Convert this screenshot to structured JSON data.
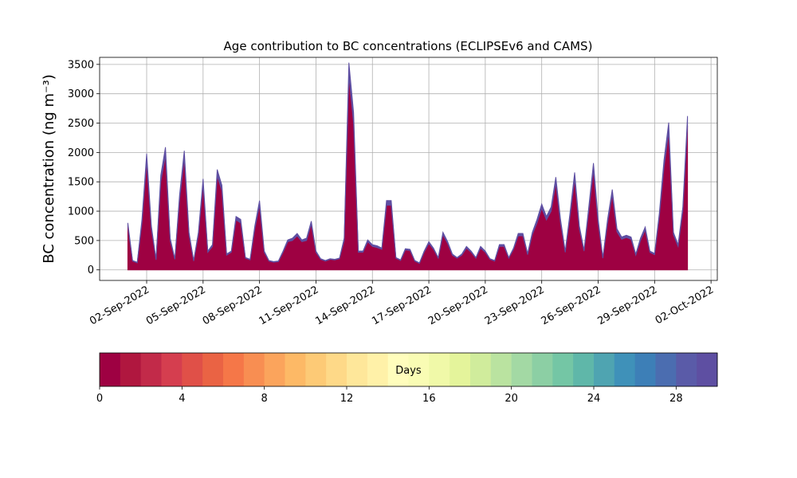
{
  "chart_data": {
    "type": "stacked_area",
    "title": "Age contribution to BC concentrations (ECLIPSEv6 and CAMS)",
    "y_label": "BC concentration (ng m⁻³)",
    "x": [
      "2022-09-01 00:00",
      "2022-09-01 06:00",
      "2022-09-01 12:00",
      "2022-09-01 18:00",
      "2022-09-02 00:00",
      "2022-09-02 06:00",
      "2022-09-02 12:00",
      "2022-09-02 18:00",
      "2022-09-03 00:00",
      "2022-09-03 06:00",
      "2022-09-03 12:00",
      "2022-09-03 18:00",
      "2022-09-04 00:00",
      "2022-09-04 06:00",
      "2022-09-04 12:00",
      "2022-09-04 18:00",
      "2022-09-05 00:00",
      "2022-09-05 06:00",
      "2022-09-05 12:00",
      "2022-09-05 18:00",
      "2022-09-06 00:00",
      "2022-09-06 06:00",
      "2022-09-06 12:00",
      "2022-09-06 18:00",
      "2022-09-07 00:00",
      "2022-09-07 06:00",
      "2022-09-07 12:00",
      "2022-09-07 18:00",
      "2022-09-08 00:00",
      "2022-09-08 06:00",
      "2022-09-08 12:00",
      "2022-09-08 18:00",
      "2022-09-09 00:00",
      "2022-09-09 06:00",
      "2022-09-09 12:00",
      "2022-09-09 18:00",
      "2022-09-10 00:00",
      "2022-09-10 06:00",
      "2022-09-10 12:00",
      "2022-09-10 18:00",
      "2022-09-11 00:00",
      "2022-09-11 06:00",
      "2022-09-11 12:00",
      "2022-09-11 18:00",
      "2022-09-12 00:00",
      "2022-09-12 06:00",
      "2022-09-12 12:00",
      "2022-09-12 18:00",
      "2022-09-13 00:00",
      "2022-09-13 06:00",
      "2022-09-13 12:00",
      "2022-09-13 18:00",
      "2022-09-14 00:00",
      "2022-09-14 06:00",
      "2022-09-14 12:00",
      "2022-09-14 18:00",
      "2022-09-15 00:00",
      "2022-09-15 06:00",
      "2022-09-15 12:00",
      "2022-09-15 18:00",
      "2022-09-16 00:00",
      "2022-09-16 06:00",
      "2022-09-16 12:00",
      "2022-09-16 18:00",
      "2022-09-17 00:00",
      "2022-09-17 06:00",
      "2022-09-17 12:00",
      "2022-09-17 18:00",
      "2022-09-18 00:00",
      "2022-09-18 06:00",
      "2022-09-18 12:00",
      "2022-09-18 18:00",
      "2022-09-19 00:00",
      "2022-09-19 06:00",
      "2022-09-19 12:00",
      "2022-09-19 18:00",
      "2022-09-20 00:00",
      "2022-09-20 06:00",
      "2022-09-20 12:00",
      "2022-09-20 18:00",
      "2022-09-21 00:00",
      "2022-09-21 06:00",
      "2022-09-21 12:00",
      "2022-09-21 18:00",
      "2022-09-22 00:00",
      "2022-09-22 06:00",
      "2022-09-22 12:00",
      "2022-09-22 18:00",
      "2022-09-23 00:00",
      "2022-09-23 06:00",
      "2022-09-23 12:00",
      "2022-09-23 18:00",
      "2022-09-24 00:00",
      "2022-09-24 06:00",
      "2022-09-24 12:00",
      "2022-09-24 18:00",
      "2022-09-25 00:00",
      "2022-09-25 06:00",
      "2022-09-25 12:00",
      "2022-09-25 18:00",
      "2022-09-26 00:00",
      "2022-09-26 06:00",
      "2022-09-26 12:00",
      "2022-09-26 18:00",
      "2022-09-27 00:00",
      "2022-09-27 06:00",
      "2022-09-27 12:00",
      "2022-09-27 18:00",
      "2022-09-28 00:00",
      "2022-09-28 06:00",
      "2022-09-28 12:00",
      "2022-09-28 18:00",
      "2022-09-29 00:00",
      "2022-09-29 06:00",
      "2022-09-29 12:00",
      "2022-09-29 18:00",
      "2022-09-30 00:00",
      "2022-09-30 06:00",
      "2022-09-30 12:00",
      "2022-09-30 18:00"
    ],
    "series": [
      {
        "color": "#9e0142",
        "values": [
          750,
          150,
          120,
          800,
          1850,
          700,
          170,
          1500,
          1950,
          500,
          180,
          1200,
          1900,
          600,
          150,
          600,
          1450,
          300,
          400,
          1600,
          1350,
          250,
          300,
          850,
          800,
          200,
          170,
          700,
          1100,
          300,
          150,
          130,
          140,
          300,
          480,
          500,
          580,
          480,
          500,
          780,
          300,
          180,
          150,
          180,
          170,
          190,
          500,
          3300,
          2500,
          300,
          300,
          480,
          400,
          380,
          350,
          1100,
          1100,
          200,
          160,
          340,
          330,
          150,
          110,
          300,
          450,
          350,
          200,
          600,
          450,
          250,
          200,
          250,
          370,
          300,
          200,
          370,
          300,
          180,
          150,
          400,
          400,
          200,
          350,
          580,
          580,
          260,
          600,
          800,
          1050,
          850,
          1000,
          1480,
          800,
          300,
          900,
          1550,
          700,
          320,
          1000,
          1700,
          800,
          200,
          800,
          1280,
          650,
          520,
          550,
          520,
          250,
          500,
          680,
          300,
          260,
          900,
          1750,
          2350,
          600,
          400,
          1000,
          2450
        ]
      },
      {
        "color": "#5e4fa2",
        "values": [
          50,
          10,
          10,
          60,
          130,
          50,
          10,
          110,
          140,
          40,
          10,
          80,
          130,
          40,
          10,
          40,
          100,
          20,
          30,
          110,
          90,
          20,
          20,
          60,
          60,
          10,
          10,
          50,
          80,
          20,
          10,
          10,
          10,
          20,
          30,
          40,
          40,
          30,
          40,
          50,
          20,
          10,
          10,
          10,
          10,
          10,
          40,
          230,
          180,
          20,
          20,
          30,
          30,
          30,
          20,
          80,
          80,
          10,
          10,
          20,
          20,
          10,
          10,
          20,
          30,
          20,
          10,
          40,
          30,
          20,
          10,
          20,
          30,
          20,
          10,
          30,
          20,
          10,
          10,
          30,
          30,
          10,
          20,
          40,
          40,
          20,
          40,
          60,
          70,
          60,
          70,
          100,
          60,
          20,
          60,
          110,
          50,
          20,
          70,
          120,
          60,
          10,
          60,
          90,
          50,
          40,
          40,
          40,
          20,
          40,
          50,
          20,
          20,
          60,
          120,
          160,
          40,
          30,
          70,
          170
        ]
      }
    ],
    "xlim": [
      "2022-08-30 12:00",
      "2022-10-02 08:00"
    ],
    "xticks": [
      {
        "value": "2022-09-02",
        "label": "02-Sep-2022"
      },
      {
        "value": "2022-09-05",
        "label": "05-Sep-2022"
      },
      {
        "value": "2022-09-08",
        "label": "08-Sep-2022"
      },
      {
        "value": "2022-09-11",
        "label": "11-Sep-2022"
      },
      {
        "value": "2022-09-14",
        "label": "14-Sep-2022"
      },
      {
        "value": "2022-09-17",
        "label": "17-Sep-2022"
      },
      {
        "value": "2022-09-20",
        "label": "20-Sep-2022"
      },
      {
        "value": "2022-09-23",
        "label": "23-Sep-2022"
      },
      {
        "value": "2022-09-26",
        "label": "26-Sep-2022"
      },
      {
        "value": "2022-09-29",
        "label": "29-Sep-2022"
      },
      {
        "value": "2022-10-02",
        "label": "02-Oct-2022"
      }
    ],
    "ylim": [
      -180,
      3620
    ],
    "yticks": [
      0,
      500,
      1000,
      1500,
      2000,
      2500,
      3000,
      3500
    ],
    "grid": true,
    "colorbar": {
      "label": "Days",
      "lim": [
        0,
        30
      ],
      "ticks": [
        0,
        4,
        8,
        12,
        16,
        20,
        24,
        28
      ],
      "colors": [
        "#9e0142",
        "#b0173f",
        "#c22a49",
        "#d53e4f",
        "#e05048",
        "#ea6344",
        "#f57748",
        "#f88e52",
        "#fba45c",
        "#fdb966",
        "#fdca76",
        "#fed988",
        "#fee79a",
        "#fff1a8",
        "#fffdbc",
        "#f9fcb4",
        "#f0f9a8",
        "#e4f49b",
        "#d0ec9c",
        "#bae3a0",
        "#a3d9a4",
        "#8ccfa4",
        "#74c6a5",
        "#5fb7a9",
        "#4fa4b1",
        "#3f91b9",
        "#3d7fb7",
        "#4b6db0",
        "#5a5ba8",
        "#5e4fa2"
      ]
    }
  }
}
